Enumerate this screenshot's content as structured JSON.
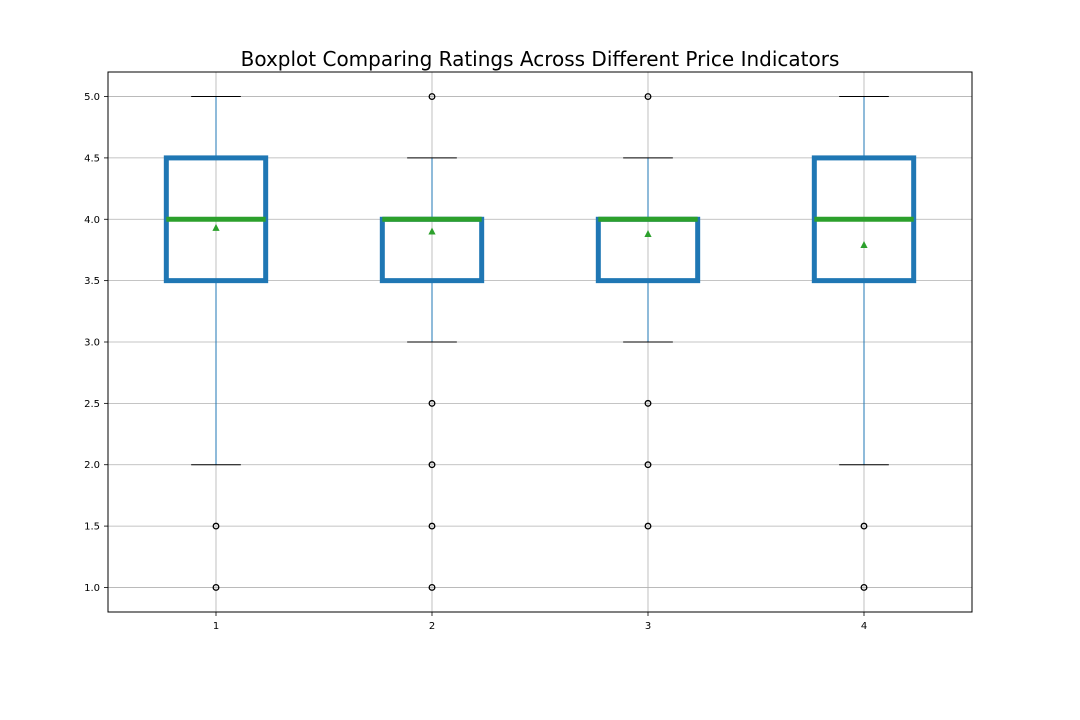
{
  "chart_data": {
    "type": "box",
    "title": "Boxplot Comparing Ratings Across Different Price Indicators",
    "xlabel": "",
    "ylabel": "",
    "categories": [
      "1",
      "2",
      "3",
      "4"
    ],
    "ylim": [
      0.8,
      5.2
    ],
    "yticks": [
      1.0,
      1.5,
      2.0,
      2.5,
      3.0,
      3.5,
      4.0,
      4.5,
      5.0
    ],
    "ytick_labels": [
      "1.0",
      "1.5",
      "2.0",
      "2.5",
      "3.0",
      "3.5",
      "4.0",
      "4.5",
      "5.0"
    ],
    "grid": true,
    "boxes": [
      {
        "category": "1",
        "whisker_low": 2.0,
        "q1": 3.5,
        "median": 4.0,
        "q3": 4.5,
        "whisker_high": 5.0,
        "mean": 3.93,
        "outliers": [
          1.5,
          1.0
        ]
      },
      {
        "category": "2",
        "whisker_low": 3.0,
        "q1": 3.5,
        "median": 4.0,
        "q3": 4.0,
        "whisker_high": 4.5,
        "mean": 3.9,
        "outliers": [
          5.0,
          2.5,
          2.0,
          1.5,
          1.0
        ]
      },
      {
        "category": "3",
        "whisker_low": 3.0,
        "q1": 3.5,
        "median": 4.0,
        "q3": 4.0,
        "whisker_high": 4.5,
        "mean": 3.88,
        "outliers": [
          5.0,
          2.5,
          2.0,
          1.5
        ]
      },
      {
        "category": "4",
        "whisker_low": 2.0,
        "q1": 3.5,
        "median": 4.0,
        "q3": 4.5,
        "whisker_high": 5.0,
        "mean": 3.79,
        "outliers": [
          1.5,
          1.0
        ]
      }
    ],
    "colors": {
      "box": "#1f77b4",
      "median": "#2ca02c",
      "mean_marker": "#2ca02c",
      "whisker": "#1f77b4",
      "cap": "#000000",
      "grid": "#b0b0b0",
      "outlier": "#000000"
    }
  }
}
